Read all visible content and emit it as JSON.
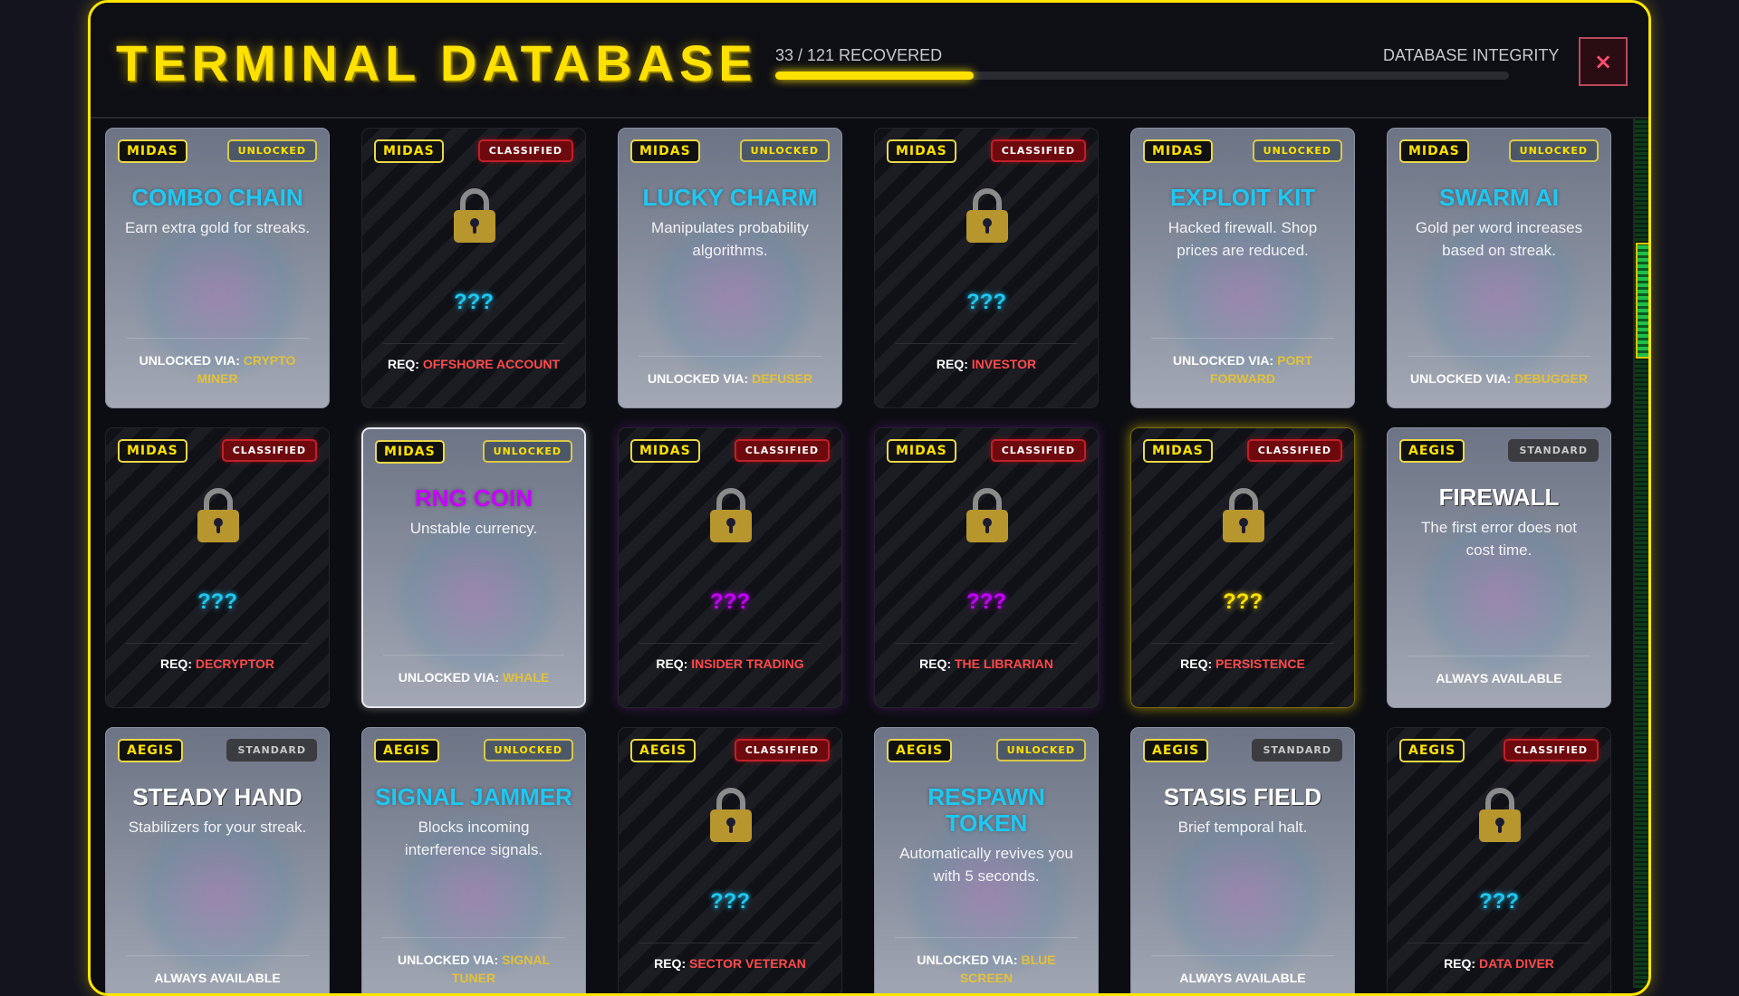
{
  "header": {
    "title": "TERMINAL DATABASE",
    "progress_label": "33 / 121 RECOVERED",
    "progress_percent": 27,
    "integrity_label": "DATABASE INTEGRITY",
    "close_label": "×"
  },
  "colors": {
    "accent": "#ffe100",
    "unlocked_title": "#1ec8f2",
    "rng_title": "#c800ff",
    "req": "#ff4a4a",
    "via": "#e2c23a"
  },
  "labels": {
    "unlocked_via": "UNLOCKED VIA: ",
    "req": "REQ: ",
    "locked_name": "???"
  },
  "cards": [
    {
      "faction": "MIDAS",
      "status": "UNLOCKED",
      "name": "COMBO CHAIN",
      "desc": "Earn extra gold for streaks.",
      "via": "CRYPTO MINER"
    },
    {
      "faction": "MIDAS",
      "status": "CLASSIFIED",
      "req": "OFFSHORE ACCOUNT",
      "q_color": "#1ec8f2",
      "icon": "lock-icon"
    },
    {
      "faction": "MIDAS",
      "status": "UNLOCKED",
      "name": "LUCKY CHARM",
      "desc": "Manipulates probability algorithms.",
      "via": "DEFUSER"
    },
    {
      "faction": "MIDAS",
      "status": "CLASSIFIED",
      "req": "INVESTOR",
      "q_color": "#1ec8f2",
      "icon": "lock-icon"
    },
    {
      "faction": "MIDAS",
      "status": "UNLOCKED",
      "name": "EXPLOIT KIT",
      "desc": "Hacked firewall. Shop prices are reduced.",
      "via": "PORT FORWARD"
    },
    {
      "faction": "MIDAS",
      "status": "UNLOCKED",
      "name": "SWARM AI",
      "desc": "Gold per word increases based on streak.",
      "via": "DEBUGGER"
    },
    {
      "faction": "MIDAS",
      "status": "CLASSIFIED",
      "req": "DECRYPTOR",
      "q_color": "#1ec8f2",
      "icon": "lock-icon"
    },
    {
      "faction": "MIDAS",
      "status": "UNLOCKED",
      "name": "RNG COIN",
      "desc": "Unstable currency.",
      "via": "WHALE",
      "title_color": "magenta",
      "hovered": true
    },
    {
      "faction": "MIDAS",
      "status": "CLASSIFIED",
      "req": "INSIDER TRADING",
      "q_color": "#c800ff",
      "glow": "purple",
      "icon": "lock-icon"
    },
    {
      "faction": "MIDAS",
      "status": "CLASSIFIED",
      "req": "THE LIBRARIAN",
      "q_color": "#c800ff",
      "glow": "purple",
      "icon": "lock-icon"
    },
    {
      "faction": "MIDAS",
      "status": "CLASSIFIED",
      "req": "PERSISTENCE",
      "q_color": "#ffe100",
      "glow": "yellow",
      "icon": "lock-icon"
    },
    {
      "faction": "AEGIS",
      "status": "STANDARD",
      "name": "FIREWALL",
      "desc": "The first error does not cost time.",
      "always": "ALWAYS AVAILABLE"
    },
    {
      "faction": "AEGIS",
      "status": "STANDARD",
      "name": "STEADY HAND",
      "desc": "Stabilizers for your streak.",
      "always": "ALWAYS AVAILABLE"
    },
    {
      "faction": "AEGIS",
      "status": "UNLOCKED",
      "name": "SIGNAL JAMMER",
      "desc": "Blocks incoming interference signals.",
      "via": "SIGNAL TUNER"
    },
    {
      "faction": "AEGIS",
      "status": "CLASSIFIED",
      "req": "SECTOR VETERAN",
      "q_color": "#1ec8f2",
      "icon": "lock-icon"
    },
    {
      "faction": "AEGIS",
      "status": "UNLOCKED",
      "name": "RESPAWN TOKEN",
      "desc": "Automatically revives you with 5 seconds.",
      "via": "BLUE SCREEN"
    },
    {
      "faction": "AEGIS",
      "status": "STANDARD",
      "name": "STASIS FIELD",
      "desc": "Brief temporal halt.",
      "always": "ALWAYS AVAILABLE"
    },
    {
      "faction": "AEGIS",
      "status": "CLASSIFIED",
      "req": "DATA DIVER",
      "q_color": "#1ec8f2",
      "icon": "lock-icon"
    }
  ]
}
